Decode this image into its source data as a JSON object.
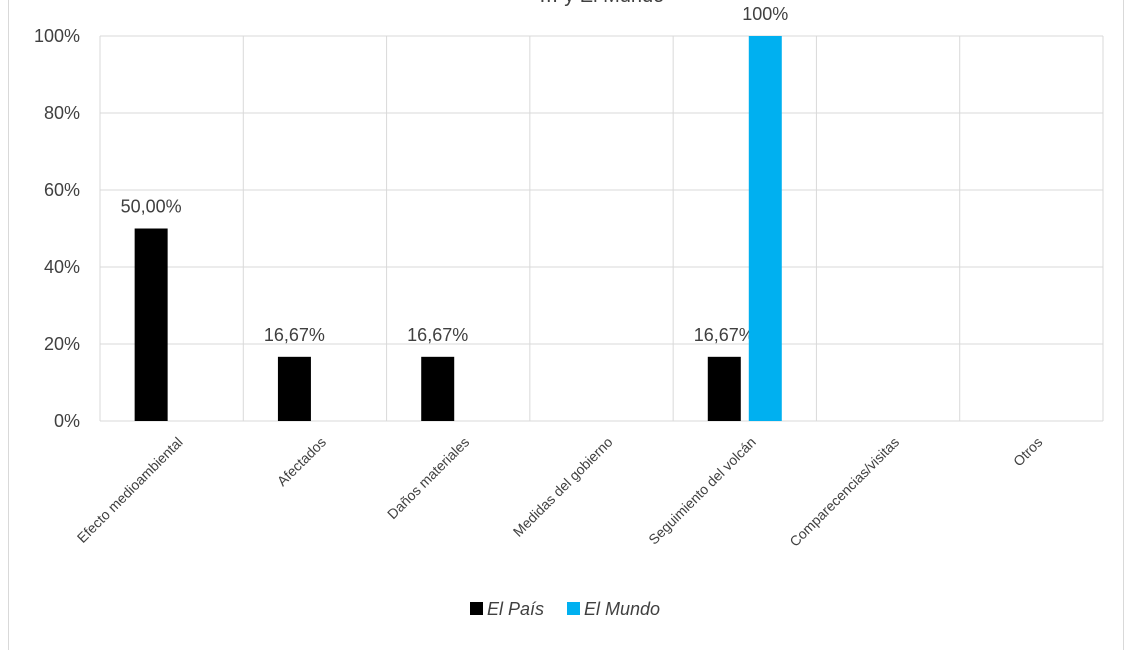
{
  "chart_data": {
    "type": "bar",
    "title": "… y El Mundo",
    "categories": [
      "Efecto medioambiental",
      "Afectados",
      "Daños materiales",
      "Medidas del gobierno",
      "Seguimiento del volcán",
      "Comparecencias/visitas",
      "Otros"
    ],
    "series": [
      {
        "name": "El País",
        "values": [
          50.0,
          16.67,
          16.67,
          0,
          16.67,
          0,
          0
        ],
        "labels": [
          "50,00%",
          "16,67%",
          "16,67%",
          "",
          "16,67%",
          "",
          ""
        ],
        "color": "#000000"
      },
      {
        "name": "El Mundo",
        "values": [
          0,
          0,
          0,
          0,
          100,
          0,
          0
        ],
        "labels": [
          "",
          "",
          "",
          "",
          "100%",
          "",
          ""
        ],
        "color": "#00b0f0"
      }
    ],
    "ylim": [
      0,
      100
    ],
    "yticks": [
      "0%",
      "20%",
      "40%",
      "60%",
      "80%",
      "100%"
    ],
    "grid": true,
    "legend_position": "bottom"
  }
}
